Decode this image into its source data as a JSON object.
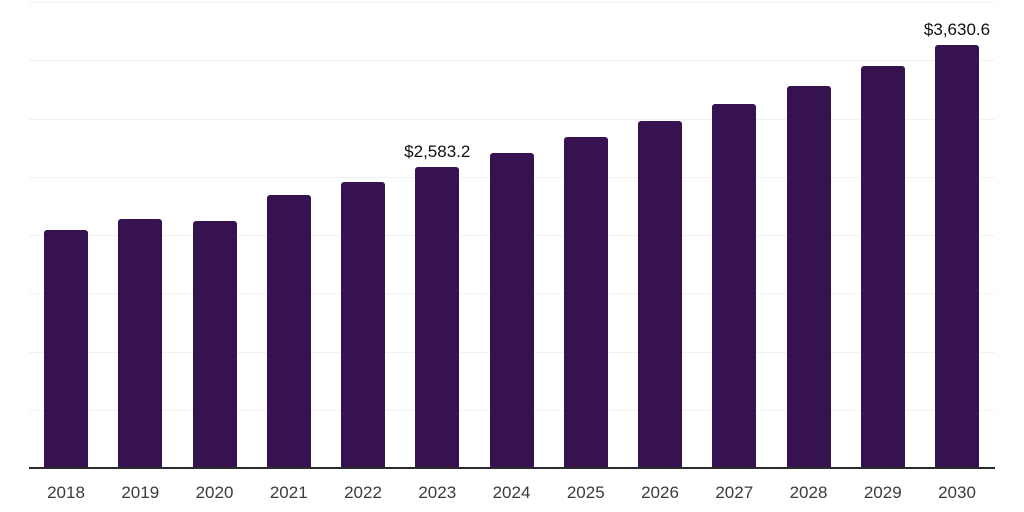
{
  "chart_data": {
    "type": "bar",
    "title": "",
    "xlabel": "",
    "ylabel": "",
    "categories": [
      "2018",
      "2019",
      "2020",
      "2021",
      "2022",
      "2023",
      "2024",
      "2025",
      "2026",
      "2027",
      "2028",
      "2029",
      "2030"
    ],
    "values": [
      2046,
      2140,
      2123,
      2346,
      2457,
      2583.2,
      2705,
      2843,
      2979,
      3125,
      3279,
      3450,
      3630.6
    ],
    "value_labels": [
      {
        "category": "2023",
        "text": "$2,583.2"
      },
      {
        "category": "2030",
        "text": "$3,630.6"
      }
    ],
    "ylim": [
      0,
      4000
    ],
    "gridline_step": 500,
    "grid": "horizontal",
    "y_axis_tick_labels_visible": false,
    "legend_position": "none",
    "colors": {
      "bar": "#371250",
      "gridline": "#f2f2f2",
      "axis_line": "#2b2b2b",
      "x_tick_label": "#3b3b3b",
      "value_label": "#111111",
      "background": "#ffffff"
    }
  }
}
